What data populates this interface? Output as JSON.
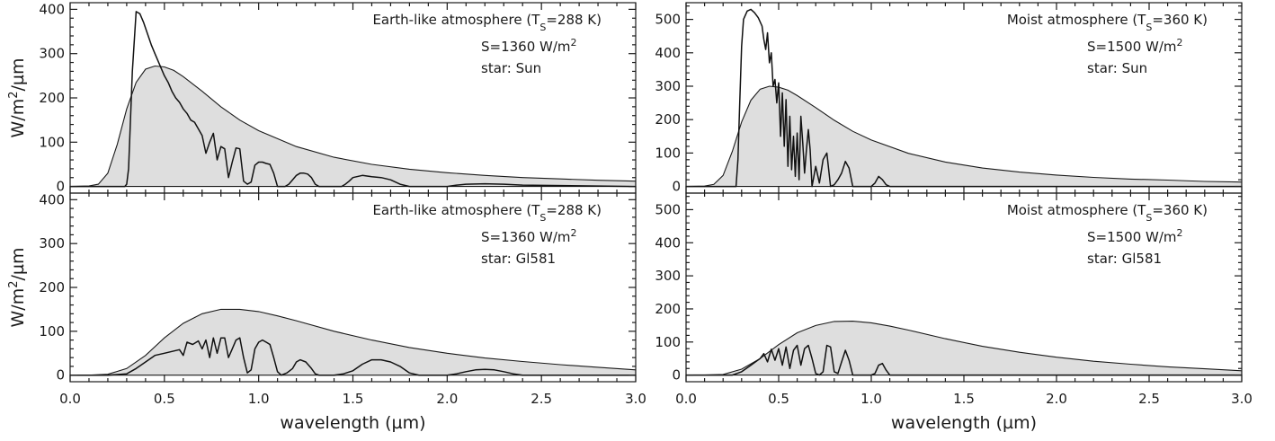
{
  "chart_data": [
    {
      "type": "area",
      "position": "top-left",
      "annotation": {
        "line1_prefix": "Earth-like atmosphere (T",
        "line1_sub": "S",
        "line1_suffix": "=288 K)",
        "line2_prefix": "S=1360 W/m",
        "line2_sup": "2",
        "line3": "star: Sun"
      },
      "ylabel": {
        "prefix": "W/m",
        "sup": "2",
        "suffix": "/µm"
      },
      "xlabel": "",
      "xlim": [
        0,
        3
      ],
      "ylim": [
        -15,
        415
      ],
      "xticks": [],
      "yticks": [
        0,
        100,
        200,
        300,
        400
      ],
      "series": [
        {
          "role": "toa",
          "x": [
            0.0,
            0.1,
            0.15,
            0.2,
            0.25,
            0.3,
            0.35,
            0.4,
            0.45,
            0.5,
            0.55,
            0.6,
            0.7,
            0.8,
            0.9,
            1.0,
            1.2,
            1.4,
            1.6,
            1.8,
            2.0,
            2.2,
            2.4,
            2.6,
            2.8,
            3.0
          ],
          "y": [
            0,
            1,
            5,
            30,
            95,
            175,
            235,
            265,
            272,
            270,
            262,
            248,
            215,
            180,
            150,
            126,
            90,
            66,
            50,
            39,
            31,
            25,
            20,
            17,
            14,
            12
          ]
        },
        {
          "role": "surface",
          "x": [
            0.0,
            0.29,
            0.3,
            0.31,
            0.33,
            0.35,
            0.37,
            0.39,
            0.41,
            0.43,
            0.45,
            0.47,
            0.5,
            0.52,
            0.54,
            0.56,
            0.58,
            0.6,
            0.62,
            0.64,
            0.66,
            0.68,
            0.7,
            0.72,
            0.74,
            0.76,
            0.78,
            0.8,
            0.82,
            0.84,
            0.86,
            0.88,
            0.9,
            0.92,
            0.94,
            0.96,
            0.98,
            1.0,
            1.02,
            1.04,
            1.06,
            1.08,
            1.1,
            1.12,
            1.14,
            1.16,
            1.18,
            1.2,
            1.22,
            1.24,
            1.26,
            1.28,
            1.3,
            1.32,
            1.34,
            1.36,
            1.38,
            1.4,
            1.42,
            1.44,
            1.46,
            1.48,
            1.5,
            1.55,
            1.6,
            1.65,
            1.7,
            1.75,
            1.8,
            1.85,
            1.9,
            1.95,
            2.0,
            2.05,
            2.1,
            2.2,
            2.3,
            2.4,
            3.0
          ],
          "y": [
            0,
            0,
            5,
            40,
            260,
            395,
            390,
            370,
            345,
            320,
            300,
            280,
            250,
            235,
            215,
            200,
            190,
            175,
            165,
            150,
            145,
            130,
            115,
            75,
            100,
            120,
            60,
            90,
            85,
            20,
            55,
            87,
            85,
            12,
            5,
            10,
            48,
            55,
            55,
            52,
            50,
            30,
            0,
            0,
            0,
            5,
            15,
            25,
            30,
            30,
            28,
            20,
            5,
            0,
            0,
            0,
            0,
            0,
            0,
            0,
            5,
            12,
            20,
            25,
            22,
            20,
            15,
            5,
            0,
            0,
            0,
            0,
            0,
            3,
            5,
            6,
            5,
            3,
            0
          ]
        }
      ]
    },
    {
      "type": "area",
      "position": "bottom-left",
      "annotation": {
        "line1_prefix": "Earth-like atmosphere (T",
        "line1_sub": "S",
        "line1_suffix": "=288 K)",
        "line2_prefix": "S=1360 W/m",
        "line2_sup": "2",
        "line3": "star: Gl581"
      },
      "ylabel": {
        "prefix": "W/m",
        "sup": "2",
        "suffix": "/µm"
      },
      "xlabel": "wavelength (µm)",
      "xlim": [
        0,
        3
      ],
      "ylim": [
        -15,
        415
      ],
      "xticks": [
        "0.0",
        "0.5",
        "1.0",
        "1.5",
        "2.0",
        "2.5",
        "3.0"
      ],
      "yticks": [
        0,
        100,
        200,
        300,
        400
      ],
      "series": [
        {
          "role": "toa",
          "x": [
            0.0,
            0.1,
            0.2,
            0.3,
            0.4,
            0.5,
            0.6,
            0.7,
            0.8,
            0.9,
            1.0,
            1.1,
            1.2,
            1.4,
            1.6,
            1.8,
            2.0,
            2.2,
            2.4,
            2.6,
            2.8,
            3.0
          ],
          "y": [
            0,
            0,
            2,
            15,
            45,
            85,
            118,
            140,
            150,
            150,
            145,
            135,
            124,
            100,
            80,
            63,
            50,
            39,
            31,
            24,
            18,
            12
          ]
        },
        {
          "role": "surface",
          "x": [
            0.0,
            0.2,
            0.3,
            0.35,
            0.4,
            0.45,
            0.5,
            0.55,
            0.58,
            0.6,
            0.62,
            0.65,
            0.68,
            0.7,
            0.72,
            0.74,
            0.76,
            0.78,
            0.8,
            0.82,
            0.84,
            0.86,
            0.88,
            0.9,
            0.92,
            0.94,
            0.96,
            0.98,
            1.0,
            1.02,
            1.04,
            1.06,
            1.08,
            1.1,
            1.12,
            1.15,
            1.18,
            1.2,
            1.22,
            1.25,
            1.28,
            1.3,
            1.32,
            1.35,
            1.4,
            1.45,
            1.5,
            1.55,
            1.6,
            1.65,
            1.7,
            1.75,
            1.8,
            1.85,
            1.9,
            1.95,
            2.0,
            2.05,
            2.1,
            2.15,
            2.2,
            2.25,
            2.3,
            2.35,
            2.4,
            3.0
          ],
          "y": [
            0,
            0,
            3,
            15,
            30,
            45,
            50,
            55,
            58,
            45,
            75,
            70,
            78,
            60,
            80,
            40,
            85,
            50,
            85,
            85,
            40,
            60,
            80,
            85,
            40,
            5,
            12,
            60,
            75,
            80,
            75,
            70,
            40,
            8,
            0,
            5,
            15,
            30,
            35,
            30,
            15,
            3,
            0,
            0,
            0,
            3,
            10,
            25,
            35,
            35,
            30,
            20,
            5,
            0,
            0,
            0,
            0,
            3,
            8,
            12,
            13,
            12,
            8,
            3,
            0,
            0
          ]
        }
      ]
    },
    {
      "type": "area",
      "position": "top-right",
      "annotation": {
        "line1_prefix": "Moist atmosphere (T",
        "line1_sub": "S",
        "line1_suffix": "=360 K)",
        "line2_prefix": "S=1500 W/m",
        "line2_sup": "2",
        "line3": "star: Sun"
      },
      "ylabel": {
        "prefix": "",
        "sup": "",
        "suffix": ""
      },
      "xlabel": "",
      "xlim": [
        0,
        3
      ],
      "ylim": [
        -20,
        550
      ],
      "xticks": [],
      "yticks": [
        0,
        100,
        200,
        300,
        400,
        500
      ],
      "series": [
        {
          "role": "toa",
          "x": [
            0.0,
            0.1,
            0.15,
            0.2,
            0.25,
            0.3,
            0.35,
            0.4,
            0.45,
            0.5,
            0.55,
            0.6,
            0.7,
            0.8,
            0.9,
            1.0,
            1.2,
            1.4,
            1.6,
            1.8,
            2.0,
            2.2,
            2.4,
            2.6,
            2.8,
            3.0
          ],
          "y": [
            0,
            1,
            6,
            33,
            105,
            193,
            258,
            291,
            300,
            297,
            288,
            272,
            236,
            198,
            165,
            139,
            99,
            73,
            55,
            43,
            34,
            27,
            22,
            19,
            15,
            13
          ]
        },
        {
          "role": "surface",
          "x": [
            0.0,
            0.27,
            0.28,
            0.29,
            0.3,
            0.31,
            0.33,
            0.35,
            0.37,
            0.39,
            0.41,
            0.42,
            0.43,
            0.44,
            0.45,
            0.46,
            0.47,
            0.48,
            0.49,
            0.5,
            0.51,
            0.52,
            0.53,
            0.54,
            0.55,
            0.56,
            0.57,
            0.58,
            0.59,
            0.6,
            0.61,
            0.62,
            0.63,
            0.64,
            0.65,
            0.66,
            0.67,
            0.68,
            0.7,
            0.72,
            0.74,
            0.76,
            0.78,
            0.8,
            0.82,
            0.84,
            0.86,
            0.88,
            0.9,
            0.95,
            1.0,
            1.02,
            1.04,
            1.06,
            1.08,
            1.1,
            3.0
          ],
          "y": [
            0,
            0,
            80,
            250,
            420,
            500,
            525,
            530,
            520,
            505,
            480,
            440,
            410,
            460,
            370,
            400,
            300,
            320,
            250,
            310,
            150,
            280,
            120,
            260,
            60,
            210,
            50,
            150,
            30,
            160,
            20,
            210,
            130,
            40,
            110,
            170,
            110,
            0,
            60,
            10,
            80,
            100,
            0,
            5,
            20,
            40,
            75,
            55,
            0,
            0,
            0,
            10,
            30,
            20,
            5,
            0,
            0
          ]
        }
      ]
    },
    {
      "type": "area",
      "position": "bottom-right",
      "annotation": {
        "line1_prefix": "Moist atmosphere (T",
        "line1_sub": "S",
        "line1_suffix": "=360 K)",
        "line2_prefix": "S=1500 W/m",
        "line2_sup": "2",
        "line3": "star: Gl581"
      },
      "ylabel": {
        "prefix": "",
        "sup": "",
        "suffix": ""
      },
      "xlabel": "wavelength (µm)",
      "xlim": [
        0,
        3
      ],
      "ylim": [
        -20,
        550
      ],
      "xticks": [
        "0.0",
        "0.5",
        "1.0",
        "1.5",
        "2.0",
        "2.5",
        "3.0"
      ],
      "yticks": [
        0,
        100,
        200,
        300,
        400,
        500
      ],
      "series": [
        {
          "role": "toa",
          "x": [
            0.0,
            0.1,
            0.2,
            0.3,
            0.4,
            0.5,
            0.6,
            0.7,
            0.8,
            0.9,
            1.0,
            1.1,
            1.2,
            1.4,
            1.6,
            1.8,
            2.0,
            2.2,
            2.4,
            2.6,
            2.8,
            3.0
          ],
          "y": [
            0,
            0,
            2,
            18,
            50,
            92,
            128,
            150,
            162,
            163,
            158,
            148,
            136,
            110,
            87,
            69,
            54,
            42,
            33,
            25,
            19,
            13
          ]
        },
        {
          "role": "surface",
          "x": [
            0.0,
            0.25,
            0.3,
            0.35,
            0.4,
            0.42,
            0.44,
            0.46,
            0.48,
            0.5,
            0.52,
            0.54,
            0.56,
            0.58,
            0.6,
            0.62,
            0.64,
            0.66,
            0.68,
            0.7,
            0.72,
            0.74,
            0.76,
            0.78,
            0.8,
            0.82,
            0.84,
            0.86,
            0.88,
            0.9,
            0.95,
            1.0,
            1.02,
            1.04,
            1.06,
            1.08,
            1.1,
            3.0
          ],
          "y": [
            0,
            0,
            10,
            30,
            50,
            65,
            40,
            78,
            45,
            80,
            30,
            85,
            20,
            75,
            90,
            30,
            80,
            90,
            50,
            5,
            0,
            10,
            90,
            85,
            10,
            5,
            40,
            75,
            45,
            0,
            0,
            0,
            5,
            30,
            35,
            15,
            0,
            0
          ]
        }
      ]
    }
  ]
}
